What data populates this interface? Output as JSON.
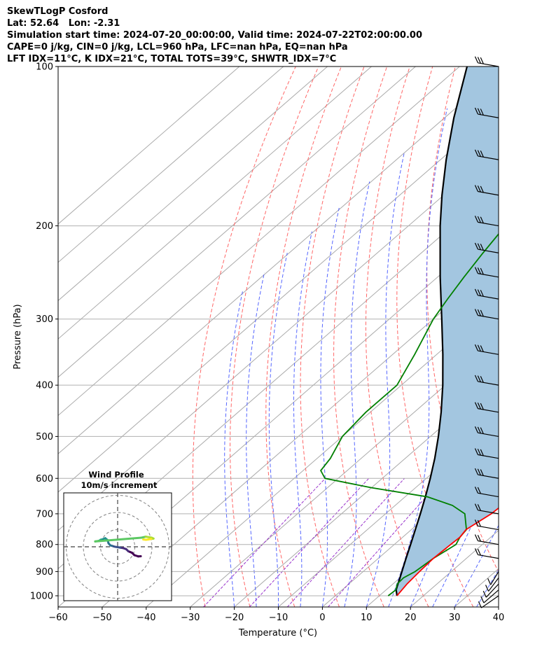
{
  "header": {
    "line1": "SkewTLogP Cosford",
    "line2": "Lat: 52.64   Lon: -2.31",
    "line3": "Simulation start time: 2024-07-20_00:00:00, Valid time: 2024-07-22T02:00:00.00",
    "line4": "CAPE=0 j/kg, CIN=0 j/kg, LCL=960 hPa, LFC=nan hPa, EQ=nan hPa",
    "line5": "LFT IDX=11$^\\circ$C, K IDX=21$^\\circ$C, TOTAL TOTS=39$^\\circ$C, SHWTR_IDX=7$^\\circ$C"
  },
  "header_display": {
    "line5": "LFT IDX=11$^\\circ$C, K IDX=21$^\\circ$C, TOTAL TOTS=39$^\\circ$C, SHWTR_IDX=7$^\\circ$C"
  },
  "colors": {
    "temperature": "#ff0000",
    "dewpoint": "#008000",
    "parcel": "#000000",
    "cape_fill": "#a3c6e0",
    "dry_adiabat": "#ff6666",
    "moist_adiabat": "#5566ff",
    "mixing_ratio": "#9933cc",
    "isotherm": "#aaaaaa"
  },
  "chart_data": [
    {
      "type": "line",
      "subtype": "skew-t log-p",
      "xlabel": "Temperature ($^\\circ$C)",
      "ylabel": "Pressure (hPa)",
      "xlim": [
        -60,
        40
      ],
      "ylim": [
        1050,
        100
      ],
      "x_ticks": [
        -60,
        -50,
        -40,
        -30,
        -20,
        -10,
        0,
        10,
        20,
        30,
        40
      ],
      "y_ticks": [
        1000,
        900,
        800,
        700,
        600,
        500,
        400,
        300,
        200,
        100
      ],
      "grid": true,
      "series": [
        {
          "key": "temperature",
          "pressure": [
            1000,
            975,
            950,
            925,
            900,
            850,
            800,
            775,
            750,
            700,
            650,
            600,
            550,
            500,
            450,
            400,
            350,
            300,
            275,
            250,
            225,
            200,
            175,
            160,
            150,
            135,
            120,
            110,
            100
          ],
          "temperature": [
            14,
            13.6,
            13.2,
            13,
            12.8,
            12.5,
            12.8,
            13.0,
            12.4,
            14,
            14.5,
            13,
            10,
            6,
            2,
            -2,
            -7,
            -13,
            -16,
            -17,
            -17,
            -16,
            -14,
            -13,
            -12,
            -11,
            -10,
            -9,
            -7
          ]
        },
        {
          "key": "dewpoint",
          "pressure": [
            1000,
            975,
            950,
            925,
            900,
            850,
            800,
            775,
            750,
            700,
            675,
            650,
            625,
            600,
            580,
            550,
            500,
            450,
            400,
            350,
            300,
            275,
            250,
            225,
            200,
            175,
            160,
            150,
            135,
            120,
            110,
            100
          ],
          "temperature": [
            12,
            12.2,
            11,
            10.8,
            11.8,
            12.5,
            14,
            13,
            12.5,
            8,
            3,
            -5,
            -20,
            -33,
            -36,
            -37,
            -40,
            -41,
            -41,
            -45,
            -50,
            -52,
            -54,
            -56,
            -58,
            -58,
            -59,
            -56,
            -53,
            -50,
            -47,
            -44
          ]
        },
        {
          "key": "parcel",
          "pressure": [
            1000,
            975,
            960,
            925,
            900,
            850,
            800,
            750,
            700,
            650,
            600,
            550,
            500,
            450,
            400,
            350,
            300,
            250,
            200,
            175,
            150,
            125,
            100
          ],
          "temperature": [
            14,
            12.3,
            11.6,
            10.0,
            8.8,
            6.3,
            3.7,
            0.9,
            -2.1,
            -5.4,
            -9.1,
            -13.3,
            -18.2,
            -23.9,
            -30.6,
            -38.6,
            -48.1,
            -59.4,
            -72.8,
            -80.4,
            -88.7,
            -97.9,
            -108.3
          ]
        }
      ]
    },
    {
      "type": "line",
      "subtype": "hodograph",
      "title": "Wind Profile",
      "subtitle": "10m/s increment",
      "ring_count": 3,
      "series": [
        {
          "key": "hodograph",
          "u": [
            13.5,
            12.0,
            9.8,
            8.4,
            6.2,
            5.0,
            3.1,
            1.6,
            0.0,
            -1.5,
            -3.4,
            -4.2,
            -5.3,
            -5.9,
            -7.2,
            -9.0,
            -9.9,
            -10.6,
            -11.2,
            -11.3,
            -13.1,
            13.9,
            16.4,
            19.8,
            20.9,
            19.6,
            18.1,
            16.5,
            14.9
          ],
          "v": [
            -5.5,
            -5.6,
            -4.9,
            -3.5,
            -2.6,
            -1.4,
            -0.7,
            -0.5,
            -0.2,
            0.0,
            0.6,
            0.8,
            2.0,
            3.9,
            5.0,
            4.3,
            4.1,
            3.6,
            3.3,
            3.4,
            3.1,
            5.3,
            5.9,
            5.3,
            4.8,
            4.6,
            4.3,
            4.1,
            4.3
          ]
        }
      ]
    }
  ]
}
